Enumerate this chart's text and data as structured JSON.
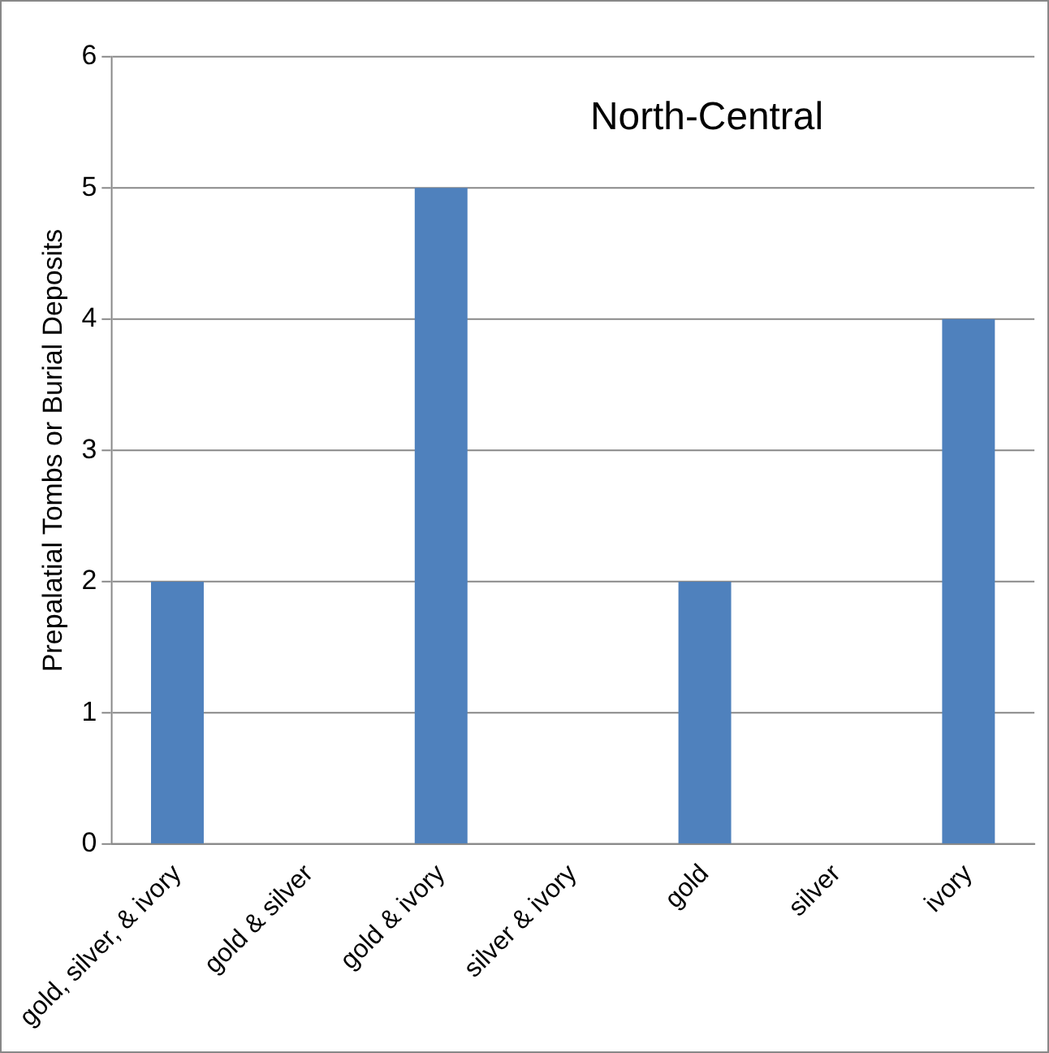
{
  "chart_data": {
    "type": "bar",
    "title": "North-Central",
    "ylabel": "Prepalatial Tombs or Burial Deposits",
    "categories": [
      "gold, silver, & ivory",
      "gold & silver",
      "gold & ivory",
      "silver & ivory",
      "gold",
      "silver",
      "ivory"
    ],
    "values": [
      2,
      0,
      5,
      0,
      2,
      0,
      4
    ],
    "color": "#4f81bd",
    "ylim": [
      0,
      6
    ],
    "yticks": [
      0,
      1,
      2,
      3,
      4,
      5,
      6
    ],
    "grid": "y",
    "legend": false
  }
}
